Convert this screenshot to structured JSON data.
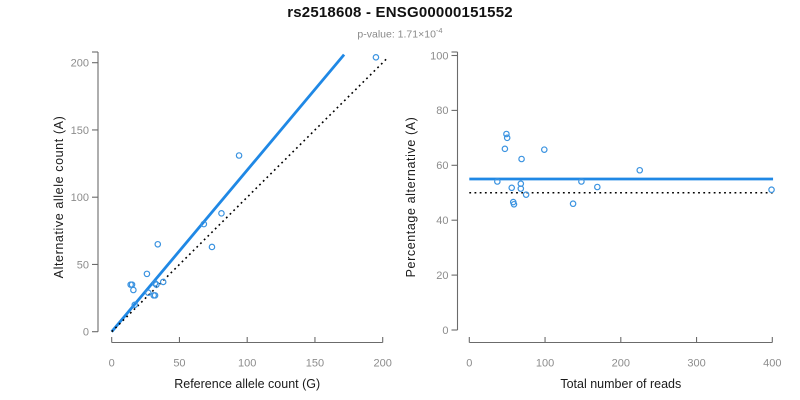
{
  "header": {
    "title": "rs2518608 - ENSG00000151552",
    "p_value_prefix": "p-value: 1.71×10",
    "p_value_exponent": "-4"
  },
  "colors": {
    "accent_blue": "#1f88e5",
    "point_blue": "#3b93e0",
    "dotted_black": "#000000",
    "axis_gray": "#6b6b6b",
    "tick_label_gray": "#8c8c8c",
    "axis_title_black": "#1a1a1a"
  },
  "chart_data": [
    {
      "type": "scatter",
      "name": "allele-counts",
      "xlabel": "Reference allele count (G)",
      "ylabel": "Alternative allele count (A)",
      "xlim": [
        0,
        200
      ],
      "ylim": [
        0,
        200
      ],
      "xticks": [
        0,
        50,
        100,
        150,
        200
      ],
      "yticks": [
        0,
        50,
        100,
        150,
        200
      ],
      "grid": false,
      "legend": "none",
      "points": [
        [
          195,
          204
        ],
        [
          94,
          131
        ],
        [
          81,
          88
        ],
        [
          68,
          80
        ],
        [
          74,
          63
        ],
        [
          34,
          65
        ],
        [
          26,
          43
        ],
        [
          14,
          35
        ],
        [
          15,
          35
        ],
        [
          16,
          31
        ],
        [
          17,
          20
        ],
        [
          27,
          29
        ],
        [
          32,
          36
        ],
        [
          33,
          35
        ],
        [
          38,
          37
        ],
        [
          31,
          27
        ],
        [
          32,
          27
        ]
      ],
      "lines": [
        {
          "name": "fitted-line",
          "type": "solid",
          "color": "#1f88e5",
          "from": [
            0,
            0
          ],
          "to": [
            171.5,
            206
          ]
        },
        {
          "name": "identity-line",
          "type": "dotted",
          "color": "#000000",
          "from": [
            0,
            0
          ],
          "to": [
            204,
            204
          ]
        }
      ]
    },
    {
      "type": "scatter",
      "name": "percentage-alternative",
      "xlabel": "Total number of reads",
      "ylabel": "Percentage alternative (A)",
      "xlim": [
        0,
        400
      ],
      "ylim": [
        0,
        100
      ],
      "xticks": [
        0,
        100,
        200,
        300,
        400
      ],
      "yticks": [
        0,
        20,
        40,
        60,
        80,
        100
      ],
      "grid": false,
      "legend": "none",
      "points": [
        [
          399,
          51.1
        ],
        [
          225,
          58.2
        ],
        [
          169,
          52.1
        ],
        [
          148,
          54.1
        ],
        [
          137,
          46.0
        ],
        [
          99,
          65.7
        ],
        [
          69,
          62.3
        ],
        [
          49,
          71.4
        ],
        [
          50,
          70.0
        ],
        [
          47,
          66.0
        ],
        [
          37,
          54.1
        ],
        [
          56,
          51.8
        ],
        [
          68,
          53.3
        ],
        [
          68,
          51.5
        ],
        [
          75,
          49.3
        ],
        [
          58,
          46.6
        ],
        [
          59,
          45.8
        ]
      ],
      "lines": [
        {
          "name": "mean-percentage-line",
          "type": "solid",
          "color": "#1f88e5",
          "from": [
            0,
            55
          ],
          "to": [
            401,
            55
          ]
        },
        {
          "name": "null-50-percent-line",
          "type": "dotted",
          "color": "#000000",
          "from": [
            0,
            50
          ],
          "to": [
            401,
            50
          ]
        }
      ]
    }
  ]
}
